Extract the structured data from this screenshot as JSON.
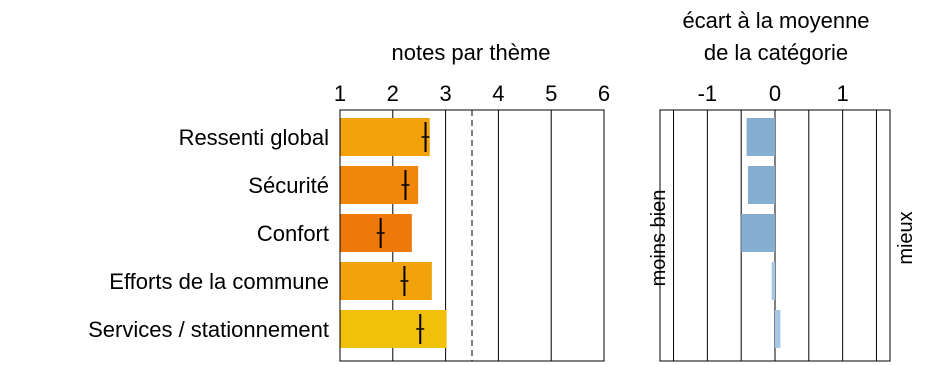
{
  "chart_data": [
    {
      "type": "bar",
      "orientation": "horizontal",
      "title": "notes par thème",
      "categories": [
        "Ressenti global",
        "Sécurité",
        "Confort",
        "Efforts de la commune",
        "Services / stationnement"
      ],
      "values": [
        2.7,
        2.48,
        2.36,
        2.74,
        3.02
      ],
      "markers": [
        2.62,
        2.24,
        1.77,
        2.22,
        2.52
      ],
      "reference_line": 3.5,
      "xlim": [
        1,
        6
      ],
      "x_ticks": [
        "1",
        "2",
        "3",
        "4",
        "5",
        "6"
      ],
      "grid": true,
      "bar_colors": [
        "#f2a20a",
        "#f0860a",
        "#ef780a",
        "#f2a20a",
        "#f0c00a"
      ]
    },
    {
      "type": "bar",
      "orientation": "horizontal",
      "title": "écart à la moyenne de la catégorie",
      "title_lines": [
        "écart à la moyenne",
        "de la catégorie"
      ],
      "categories": [
        "Ressenti global",
        "Sécurité",
        "Confort",
        "Efforts de la commune",
        "Services / stationnement"
      ],
      "values": [
        -0.42,
        -0.4,
        -0.5,
        -0.05,
        0.08
      ],
      "xlim": [
        -1.7,
        1.7
      ],
      "x_tick_values": [
        -1,
        0,
        1
      ],
      "x_ticks": [
        "-1",
        "0",
        "1"
      ],
      "grid": true,
      "left_label": "moins bien",
      "right_label": "mieux",
      "bar_colors": [
        "#86aed0",
        "#86aed0",
        "#86aed0",
        "#a6c8e6",
        "#a6c8e6"
      ]
    }
  ]
}
